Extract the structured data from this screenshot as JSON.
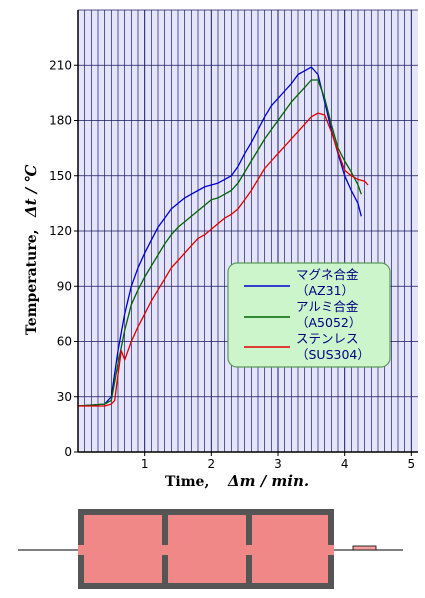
{
  "chart_data": {
    "type": "line",
    "xlabel_text": "Time,",
    "xlabel_symbol": "Δm / min.",
    "ylabel_text": "Temperature,",
    "ylabel_symbol": "Δt / ℃",
    "xlim": [
      0,
      5.1
    ],
    "ylim": [
      0,
      240
    ],
    "x_ticks": [
      "1",
      "2",
      "3",
      "4",
      "5"
    ],
    "y_ticks": [
      "0",
      "30",
      "60",
      "90",
      "120",
      "150",
      "180",
      "210"
    ],
    "grid": true,
    "legend_position": "lower-right",
    "colors": {
      "plot_bg": "#e4e4fb",
      "grid": "#1a1a60",
      "legend_bg": "#ccf5cc",
      "legend_border": "#5a9a5a"
    },
    "series": [
      {
        "name": "マグネ合金",
        "code": "（AZ31）",
        "color": "#0000d0",
        "x": [
          0.0,
          0.4,
          0.5,
          0.6,
          0.7,
          0.8,
          0.9,
          1.0,
          1.1,
          1.2,
          1.3,
          1.4,
          1.5,
          1.6,
          1.7,
          1.8,
          1.9,
          2.0,
          2.1,
          2.2,
          2.3,
          2.4,
          2.5,
          2.6,
          2.7,
          2.8,
          2.9,
          3.0,
          3.1,
          3.2,
          3.3,
          3.4,
          3.5,
          3.6,
          3.7,
          3.8,
          3.9,
          4.0,
          4.1,
          4.2,
          4.25
        ],
        "y": [
          25,
          26,
          30,
          55,
          75,
          90,
          100,
          108,
          115,
          122,
          127,
          132,
          135,
          138,
          140,
          142,
          144,
          145,
          146,
          148,
          150,
          155,
          162,
          168,
          175,
          182,
          188,
          192,
          196,
          200,
          205,
          207,
          209,
          205,
          190,
          175,
          162,
          150,
          142,
          135,
          128
        ]
      },
      {
        "name": "アルミ合金",
        "code": "（A5052）",
        "color": "#006400",
        "x": [
          0.0,
          0.4,
          0.5,
          0.6,
          0.7,
          0.8,
          0.9,
          1.0,
          1.1,
          1.2,
          1.3,
          1.4,
          1.5,
          1.6,
          1.7,
          1.8,
          1.9,
          2.0,
          2.1,
          2.2,
          2.3,
          2.4,
          2.5,
          2.6,
          2.7,
          2.8,
          2.9,
          3.0,
          3.1,
          3.2,
          3.3,
          3.4,
          3.5,
          3.6,
          3.7,
          3.8,
          3.9,
          4.0,
          4.1,
          4.2,
          4.25
        ],
        "y": [
          25,
          26,
          28,
          48,
          66,
          80,
          88,
          95,
          101,
          107,
          113,
          118,
          122,
          125,
          128,
          131,
          134,
          137,
          138,
          140,
          142,
          146,
          152,
          158,
          164,
          170,
          175,
          180,
          185,
          190,
          194,
          198,
          202,
          202,
          192,
          178,
          165,
          158,
          152,
          145,
          140
        ]
      },
      {
        "name": "ステンレス",
        "code": "（SUS304）",
        "color": "#e00000",
        "x": [
          0.0,
          0.4,
          0.5,
          0.55,
          0.6,
          0.65,
          0.7,
          0.8,
          0.9,
          1.0,
          1.1,
          1.2,
          1.3,
          1.4,
          1.5,
          1.6,
          1.7,
          1.8,
          1.9,
          2.0,
          2.1,
          2.2,
          2.3,
          2.4,
          2.5,
          2.6,
          2.7,
          2.8,
          2.9,
          3.0,
          3.1,
          3.2,
          3.3,
          3.4,
          3.5,
          3.6,
          3.7,
          3.8,
          3.9,
          4.0,
          4.1,
          4.2,
          4.3,
          4.35
        ],
        "y": [
          25,
          25,
          26,
          28,
          42,
          55,
          50,
          60,
          68,
          75,
          82,
          88,
          94,
          100,
          104,
          108,
          112,
          116,
          118,
          121,
          124,
          127,
          129,
          132,
          137,
          142,
          148,
          154,
          158,
          162,
          166,
          170,
          174,
          178,
          182,
          184,
          183,
          174,
          163,
          153,
          150,
          148,
          147,
          145
        ]
      }
    ]
  },
  "furnace": {
    "body_color": "#f08888",
    "frame_color": "#555555",
    "stand_color": "#f4a0a0"
  }
}
